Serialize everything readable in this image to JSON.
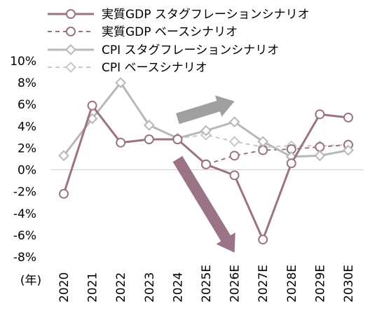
{
  "chart_data": {
    "type": "line",
    "title": "",
    "xlabel": "",
    "ylabel": "",
    "year_unit_label": "(年)",
    "categories": [
      "2020",
      "2021",
      "2022",
      "2023",
      "2024",
      "2025E",
      "2026E",
      "2027E",
      "2028E",
      "2029E",
      "2030E"
    ],
    "ylim": [
      -8,
      10
    ],
    "yticks": [
      -8,
      -6,
      -4,
      -2,
      0,
      2,
      4,
      6,
      8,
      10
    ],
    "ytick_labels": [
      "-8%",
      "-6%",
      "-4%",
      "-2%",
      "0%",
      "2%",
      "4%",
      "6%",
      "8%",
      "10%"
    ],
    "grid": false,
    "legend_position": "top",
    "series": [
      {
        "name": "実質GDP スタグフレーションシナリオ",
        "values": [
          -2.2,
          5.9,
          2.5,
          2.8,
          2.8,
          0.5,
          -0.5,
          -6.4,
          0.6,
          5.1,
          4.8
        ],
        "color": "#9b7386",
        "style": "solid",
        "marker": "circle"
      },
      {
        "name": "実質GDP ベースシナリオ",
        "values": [
          null,
          null,
          null,
          null,
          2.8,
          0.5,
          1.3,
          1.8,
          1.9,
          2.1,
          2.3
        ],
        "color": "#9b7386",
        "style": "dashed",
        "marker": "circle"
      },
      {
        "name": "CPI スタグフレーションシナリオ",
        "values": [
          1.3,
          4.7,
          8.0,
          4.1,
          2.9,
          3.6,
          4.4,
          2.6,
          1.2,
          1.3,
          1.8
        ],
        "color": "#b8b8b8",
        "style": "solid",
        "marker": "diamond"
      },
      {
        "name": "CPI ベースシナリオ",
        "values": [
          null,
          null,
          null,
          null,
          2.9,
          3.2,
          2.6,
          2.1,
          2.2,
          2.2,
          2.3
        ],
        "color": "#c8c8c8",
        "style": "dashed",
        "marker": "diamond"
      }
    ],
    "annotations": [
      {
        "kind": "arrow-up",
        "color": "#a0a0a0",
        "from": {
          "x": "2024",
          "y": 4.7
        },
        "to": {
          "x": "2026E",
          "y": 6.3
        }
      },
      {
        "kind": "arrow-down",
        "color": "#9b7386",
        "from": {
          "x": "2024",
          "y": 1.0
        },
        "to": {
          "x": "2026E",
          "y": -7.6
        }
      }
    ]
  }
}
